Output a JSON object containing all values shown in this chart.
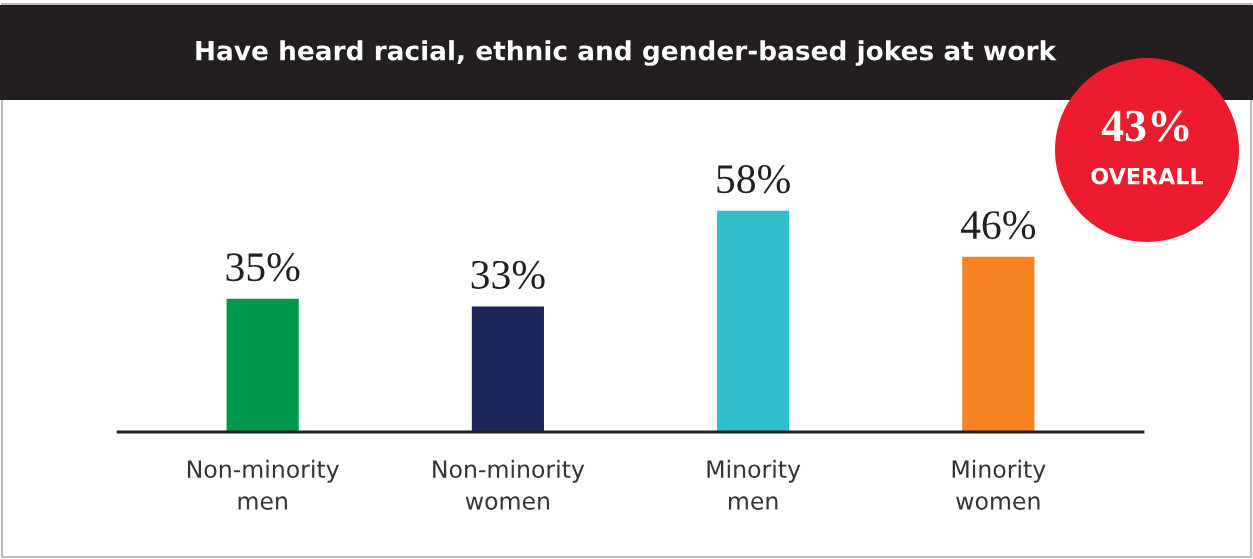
{
  "chart_data": {
    "type": "bar",
    "title": "Have heard racial, ethnic and gender-based jokes at work",
    "categories": [
      "Non-minority\nmen",
      "Non-minority\nwomen",
      "Minority\nmen",
      "Minority\nwomen"
    ],
    "values": [
      35,
      33,
      58,
      46
    ],
    "colors": [
      "#00994c",
      "#1c2659",
      "#33bfc9",
      "#f58220"
    ],
    "value_labels": [
      "35%",
      "33%",
      "58%",
      "46%"
    ],
    "annotations": [
      "43%",
      "OVERALL"
    ],
    "grid": false
  }
}
